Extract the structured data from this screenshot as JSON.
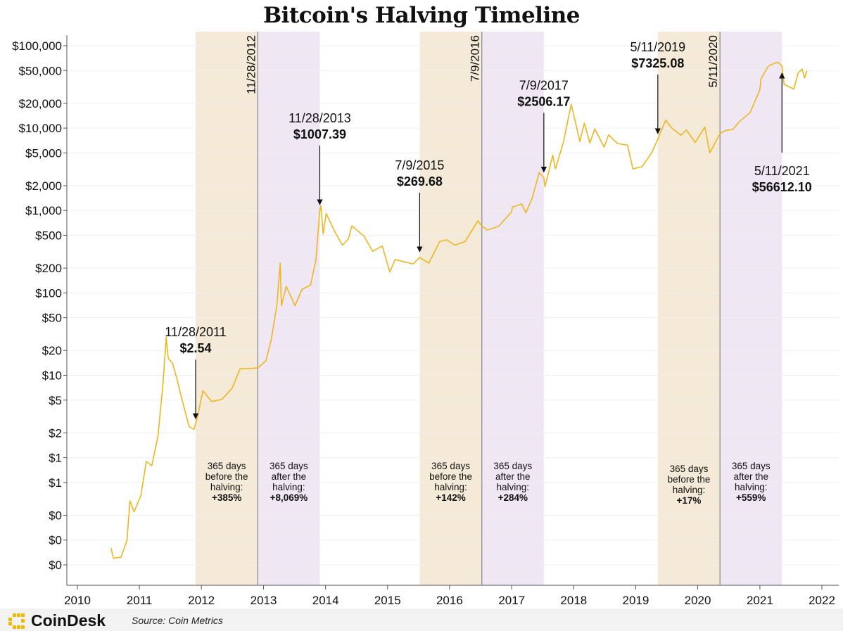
{
  "title": "Bitcoin's Halving Timeline",
  "footer": {
    "brand": "CoinDesk",
    "source": "Source: Coin Metrics"
  },
  "colors": {
    "price_line": "#efb61f",
    "before_band": "#f4ead7",
    "after_band": "#efe7f4",
    "halving_line": "#888888"
  },
  "chart_data": {
    "type": "line",
    "yscale": "log",
    "xlim": [
      "2010-01-01",
      "2022-01-01"
    ],
    "ylim": [
      0.05,
      100000
    ],
    "x_ticks": [
      "2010",
      "2011",
      "2012",
      "2013",
      "2014",
      "2015",
      "2016",
      "2017",
      "2018",
      "2019",
      "2020",
      "2021",
      "2022"
    ],
    "y_ticks": [
      {
        "value": 100000,
        "label": "$100,000"
      },
      {
        "value": 50000,
        "label": "$50,000"
      },
      {
        "value": 20000,
        "label": "$20,000"
      },
      {
        "value": 10000,
        "label": "$10,000"
      },
      {
        "value": 5000,
        "label": "$5,000"
      },
      {
        "value": 2000,
        "label": "$2,000"
      },
      {
        "value": 1000,
        "label": "$1,000"
      },
      {
        "value": 500,
        "label": "$500"
      },
      {
        "value": 200,
        "label": "$200"
      },
      {
        "value": 100,
        "label": "$100"
      },
      {
        "value": 50,
        "label": "$50"
      },
      {
        "value": 20,
        "label": "$20"
      },
      {
        "value": 10,
        "label": "$10"
      },
      {
        "value": 5,
        "label": "$5"
      },
      {
        "value": 2,
        "label": "$2"
      },
      {
        "value": 1,
        "label": "$1"
      },
      {
        "value": 0.5,
        "label": "$1"
      },
      {
        "value": 0.2,
        "label": "$0"
      },
      {
        "value": 0.1,
        "label": "$0"
      },
      {
        "value": 0.05,
        "label": "$0"
      }
    ],
    "series": [
      {
        "points": [
          [
            "2010-07-18",
            0.08
          ],
          [
            "2010-08-01",
            0.06
          ],
          [
            "2010-09-15",
            0.062
          ],
          [
            "2010-10-20",
            0.1
          ],
          [
            "2010-11-06",
            0.3
          ],
          [
            "2010-12-01",
            0.22
          ],
          [
            "2011-01-10",
            0.35
          ],
          [
            "2011-02-10",
            0.9
          ],
          [
            "2011-03-15",
            0.8
          ],
          [
            "2011-04-20",
            1.8
          ],
          [
            "2011-05-20",
            8
          ],
          [
            "2011-06-08",
            29
          ],
          [
            "2011-06-20",
            16
          ],
          [
            "2011-07-15",
            14
          ],
          [
            "2011-08-10",
            9
          ],
          [
            "2011-09-10",
            5
          ],
          [
            "2011-10-20",
            2.4
          ],
          [
            "2011-11-18",
            2.2
          ],
          [
            "2011-12-10",
            3.2
          ],
          [
            "2012-01-10",
            6.5
          ],
          [
            "2012-03-01",
            4.8
          ],
          [
            "2012-05-01",
            5.1
          ],
          [
            "2012-07-01",
            7
          ],
          [
            "2012-08-16",
            12
          ],
          [
            "2012-10-01",
            12
          ],
          [
            "2012-11-28",
            12.3
          ],
          [
            "2013-01-15",
            15
          ],
          [
            "2013-02-15",
            27
          ],
          [
            "2013-03-20",
            70
          ],
          [
            "2013-04-09",
            230
          ],
          [
            "2013-04-16",
            70
          ],
          [
            "2013-05-15",
            120
          ],
          [
            "2013-07-05",
            70
          ],
          [
            "2013-08-15",
            110
          ],
          [
            "2013-10-05",
            125
          ],
          [
            "2013-11-05",
            250
          ],
          [
            "2013-11-28",
            1007.39
          ],
          [
            "2013-12-04",
            1150
          ],
          [
            "2013-12-18",
            520
          ],
          [
            "2014-01-05",
            920
          ],
          [
            "2014-02-25",
            550
          ],
          [
            "2014-04-10",
            380
          ],
          [
            "2014-05-15",
            450
          ],
          [
            "2014-06-05",
            650
          ],
          [
            "2014-08-15",
            490
          ],
          [
            "2014-10-05",
            320
          ],
          [
            "2014-12-01",
            370
          ],
          [
            "2015-01-14",
            180
          ],
          [
            "2015-02-15",
            255
          ],
          [
            "2015-04-01",
            240
          ],
          [
            "2015-06-01",
            225
          ],
          [
            "2015-07-09",
            269.68
          ],
          [
            "2015-09-01",
            230
          ],
          [
            "2015-11-04",
            420
          ],
          [
            "2015-12-15",
            440
          ],
          [
            "2016-02-01",
            380
          ],
          [
            "2016-04-01",
            420
          ],
          [
            "2016-06-16",
            750
          ],
          [
            "2016-07-09",
            650
          ],
          [
            "2016-08-10",
            580
          ],
          [
            "2016-10-15",
            640
          ],
          [
            "2016-12-31",
            960
          ],
          [
            "2017-01-05",
            1100
          ],
          [
            "2017-03-01",
            1200
          ],
          [
            "2017-03-25",
            940
          ],
          [
            "2017-05-01",
            1400
          ],
          [
            "2017-06-12",
            2900
          ],
          [
            "2017-07-09",
            2506.17
          ],
          [
            "2017-07-16",
            1950
          ],
          [
            "2017-08-31",
            4700
          ],
          [
            "2017-09-15",
            3200
          ],
          [
            "2017-11-01",
            6700
          ],
          [
            "2017-12-17",
            19500
          ],
          [
            "2018-02-06",
            6900
          ],
          [
            "2018-03-05",
            11500
          ],
          [
            "2018-04-06",
            6600
          ],
          [
            "2018-05-05",
            9800
          ],
          [
            "2018-06-29",
            5900
          ],
          [
            "2018-07-25",
            8300
          ],
          [
            "2018-09-15",
            6500
          ],
          [
            "2018-11-14",
            6200
          ],
          [
            "2018-12-15",
            3200
          ],
          [
            "2019-02-07",
            3400
          ],
          [
            "2019-04-02",
            4900
          ],
          [
            "2019-05-11",
            7325.08
          ],
          [
            "2019-06-26",
            12500
          ],
          [
            "2019-08-01",
            10000
          ],
          [
            "2019-09-25",
            8200
          ],
          [
            "2019-10-26",
            9500
          ],
          [
            "2019-12-17",
            6700
          ],
          [
            "2020-02-12",
            10300
          ],
          [
            "2020-03-12",
            5000
          ],
          [
            "2020-05-11",
            8600
          ],
          [
            "2020-06-15",
            9400
          ],
          [
            "2020-07-25",
            9600
          ],
          [
            "2020-09-01",
            11900
          ],
          [
            "2020-11-05",
            15500
          ],
          [
            "2020-12-31",
            29000
          ],
          [
            "2021-01-08",
            40000
          ],
          [
            "2021-02-21",
            57000
          ],
          [
            "2021-04-14",
            63500
          ],
          [
            "2021-05-11",
            56612.1
          ],
          [
            "2021-05-23",
            34000
          ],
          [
            "2021-07-20",
            29800
          ],
          [
            "2021-08-15",
            47000
          ],
          [
            "2021-09-07",
            52000
          ],
          [
            "2021-09-21",
            40500
          ],
          [
            "2021-10-05",
            49500
          ]
        ]
      }
    ],
    "halvings": [
      {
        "date": "2012-11-28",
        "label": "11/28/2012"
      },
      {
        "date": "2016-07-09",
        "label": "7/9/2016"
      },
      {
        "date": "2020-05-11",
        "label": "5/11/2020"
      }
    ],
    "annotations": [
      {
        "date": "2011-11-28",
        "value": 2.54,
        "date_label": "11/28/2011",
        "price_label": "$2.54",
        "direction": "down"
      },
      {
        "date": "2013-11-28",
        "value": 1007.39,
        "date_label": "11/28/2013",
        "price_label": "$1007.39",
        "direction": "down"
      },
      {
        "date": "2015-07-09",
        "value": 269.68,
        "date_label": "7/9/2015",
        "price_label": "$269.68",
        "direction": "down"
      },
      {
        "date": "2017-07-09",
        "value": 2506.17,
        "date_label": "7/9/2017",
        "price_label": "$2506.17",
        "direction": "down"
      },
      {
        "date": "2019-05-11",
        "value": 7325.08,
        "date_label": "5/11/2019",
        "price_label": "$7325.08",
        "direction": "down"
      },
      {
        "date": "2021-05-11",
        "value": 56612.1,
        "date_label": "5/11/2021",
        "price_label": "$56612.10",
        "direction": "up"
      }
    ],
    "bands": [
      {
        "type": "before",
        "start": "2011-11-28",
        "end": "2012-11-28",
        "lines": [
          "365 days",
          "before the",
          "halving:"
        ],
        "pct": "+385%"
      },
      {
        "type": "after",
        "start": "2012-11-28",
        "end": "2013-11-28",
        "lines": [
          "365 days",
          "after the",
          "halving:"
        ],
        "pct": "+8,069%"
      },
      {
        "type": "before",
        "start": "2015-07-09",
        "end": "2016-07-09",
        "lines": [
          "365 days",
          "before the",
          "halving:"
        ],
        "pct": "+142%"
      },
      {
        "type": "after",
        "start": "2016-07-09",
        "end": "2017-07-09",
        "lines": [
          "365 days",
          "after the",
          "halving:"
        ],
        "pct": "+284%"
      },
      {
        "type": "before",
        "start": "2019-05-11",
        "end": "2020-05-11",
        "lines": [
          "365 days",
          "before the",
          "halving:"
        ],
        "pct": "+17%"
      },
      {
        "type": "after",
        "start": "2020-05-11",
        "end": "2021-05-11",
        "lines": [
          "365 days",
          "after the",
          "halving:"
        ],
        "pct": "+559%"
      }
    ]
  }
}
